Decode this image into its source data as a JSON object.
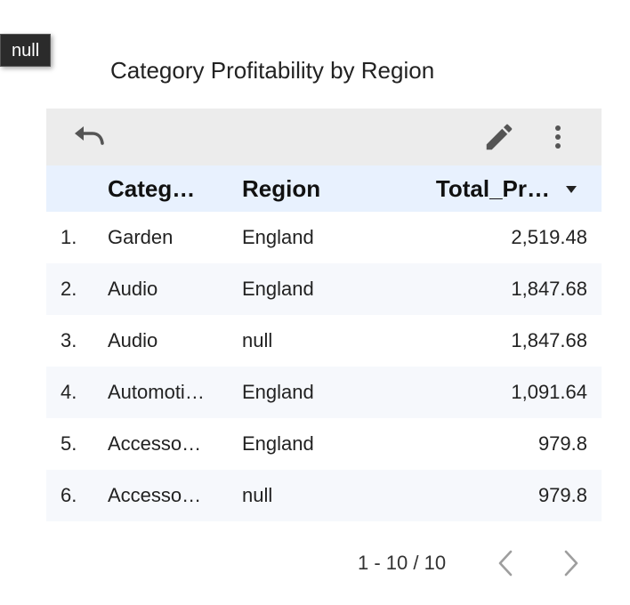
{
  "tooltip": {
    "text": "null"
  },
  "chart": {
    "title": "Category Profitability by Region"
  },
  "toolbar": {
    "undo_icon": "undo-icon",
    "edit_icon": "pencil-icon",
    "more_icon": "more-vert-icon"
  },
  "table": {
    "headers": {
      "category": "Categ…",
      "region": "Region",
      "profit": "Total_Pr…",
      "sort_icon": "sort-desc-icon"
    },
    "rows": [
      {
        "num": "1.",
        "category": "Garden",
        "region": "England",
        "profit": "2,519.48"
      },
      {
        "num": "2.",
        "category": "Audio",
        "region": "England",
        "profit": "1,847.68"
      },
      {
        "num": "3.",
        "category": "Audio",
        "region": "null",
        "profit": "1,847.68"
      },
      {
        "num": "4.",
        "category": "Automoti…",
        "region": "England",
        "profit": "1,091.64"
      },
      {
        "num": "5.",
        "category": "Accesso…",
        "region": "England",
        "profit": "979.8"
      },
      {
        "num": "6.",
        "category": "Accesso…",
        "region": "null",
        "profit": "979.8"
      }
    ]
  },
  "pagination": {
    "range_text": "1 - 10 / 10",
    "prev_icon": "chevron-left-icon",
    "next_icon": "chevron-right-icon"
  },
  "colors": {
    "toolbar_bg": "#ececec",
    "header_bg": "#e8f1fe",
    "alt_row_bg": "#f6f8fc",
    "icon": "#555555",
    "pager_disabled": "#9e9e9e"
  }
}
